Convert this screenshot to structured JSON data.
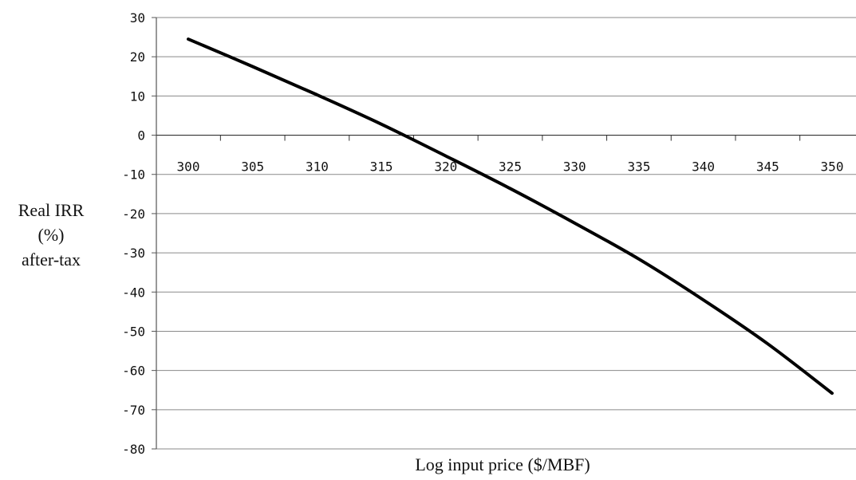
{
  "chart_data": {
    "type": "line",
    "title": "",
    "xlabel": "Log input price ($/MBF)",
    "ylabel_lines": [
      "Real IRR",
      "(%)",
      "after-tax"
    ],
    "xlim": [
      300,
      350
    ],
    "ylim": [
      -80,
      30
    ],
    "x_ticks": [
      300,
      305,
      310,
      315,
      320,
      325,
      330,
      335,
      340,
      345,
      350
    ],
    "y_ticks": [
      30,
      20,
      10,
      0,
      -10,
      -20,
      -30,
      -40,
      -50,
      -60,
      -70,
      -80
    ],
    "grid": "horizontal",
    "legend": "none",
    "line_color": "#000000",
    "series": [
      {
        "x": [
          300,
          305,
          310,
          315,
          320,
          325,
          330,
          335,
          340,
          345,
          350
        ],
        "y": [
          24.5,
          17.5,
          10.3,
          2.8,
          -5.3,
          -13.6,
          -22.4,
          -31.6,
          -42.0,
          -53.2,
          -65.8
        ]
      }
    ]
  }
}
